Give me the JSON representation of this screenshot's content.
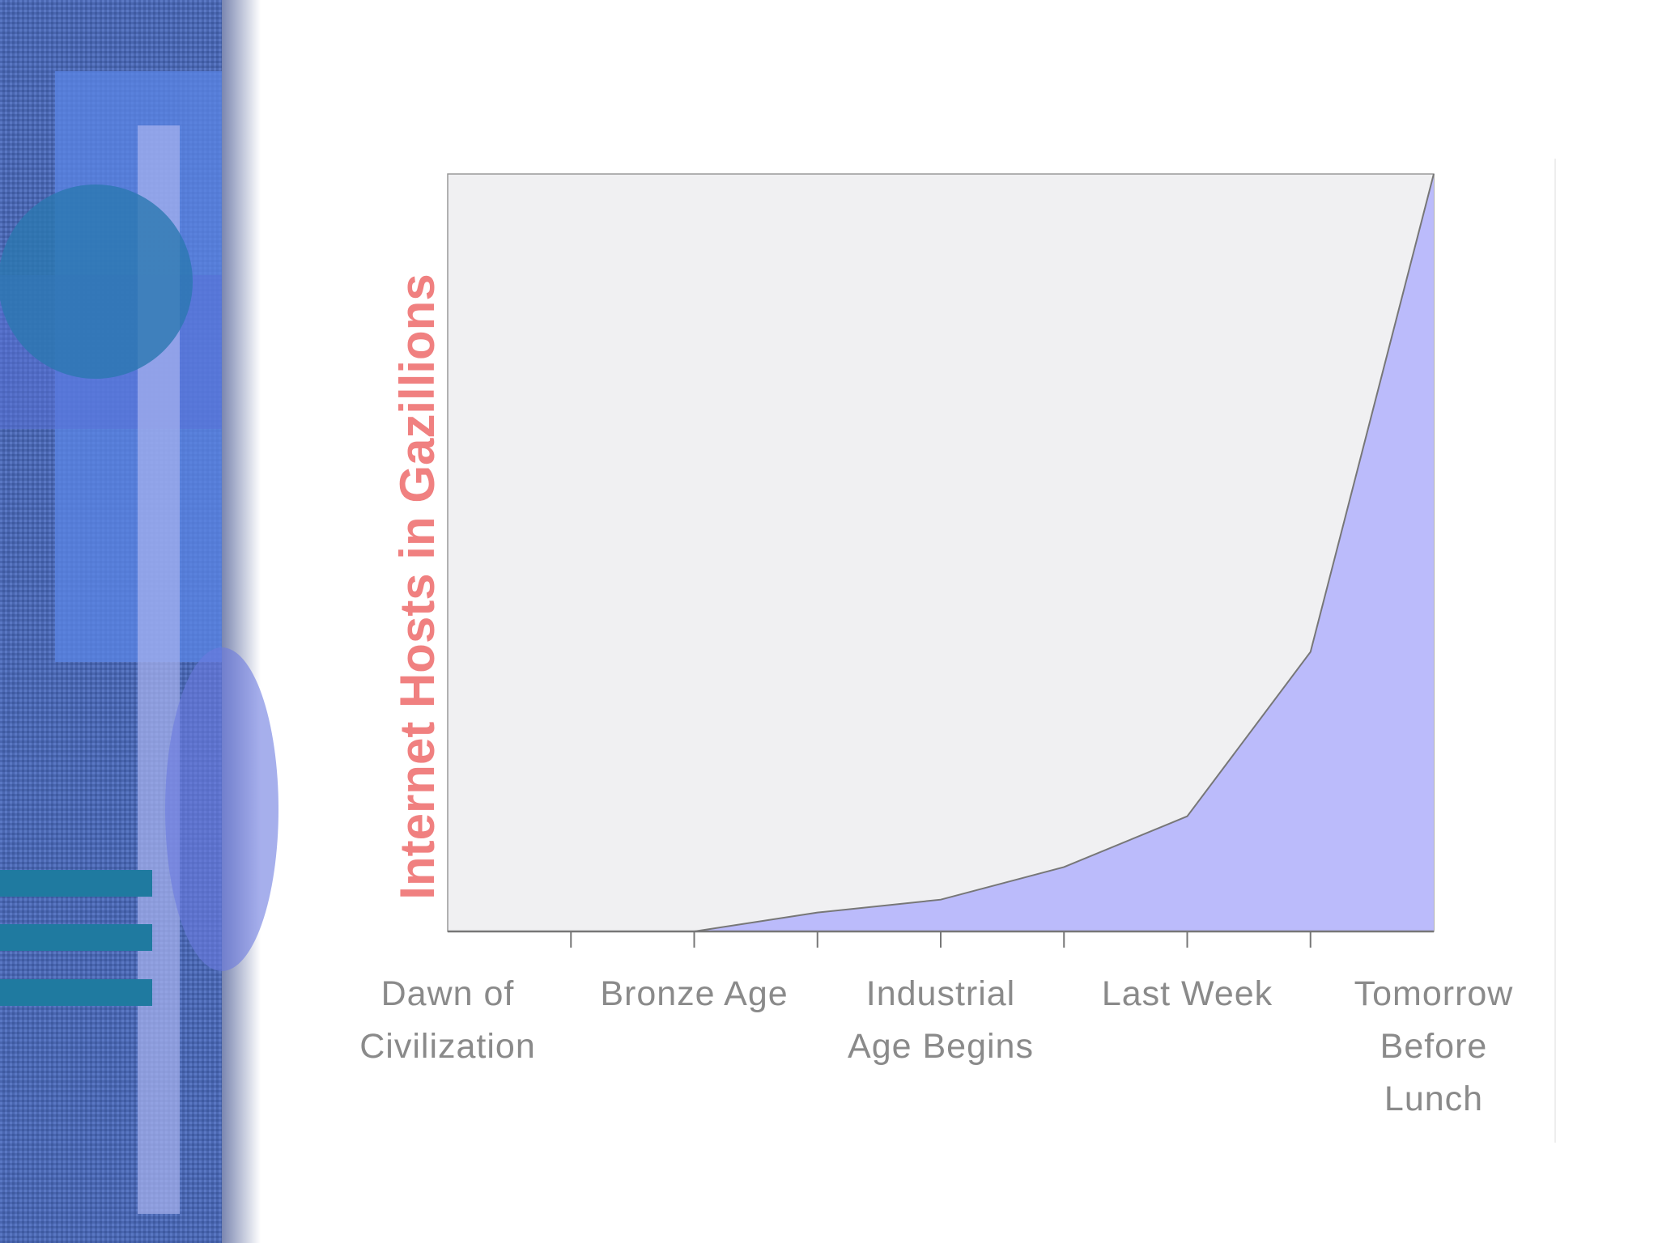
{
  "chart_data": {
    "type": "area",
    "ylabel": "Internet Hosts in Gazillions",
    "categories": [
      "Dawn of\nCivilization",
      null,
      "Bronze Age",
      null,
      "Industrial\nAge Begins",
      null,
      "Last Week",
      null,
      "Tomorrow\nBefore\nLunch"
    ],
    "values": [
      0,
      0,
      0,
      2.5,
      4.2,
      8.5,
      15.2,
      36.9,
      100
    ],
    "color": "#bbbbfb",
    "ylim": [
      0,
      100
    ]
  }
}
